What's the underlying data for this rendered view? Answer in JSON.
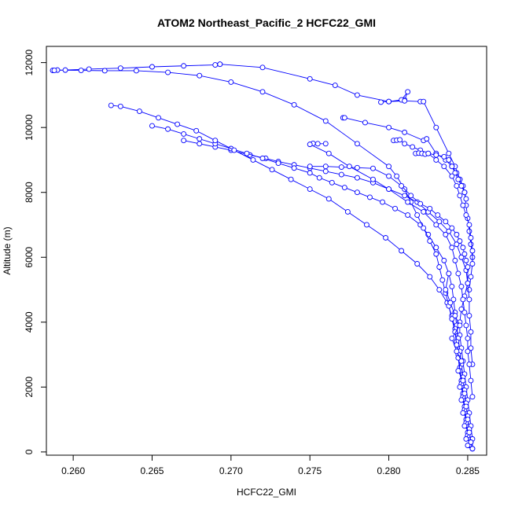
{
  "chart_data": {
    "type": "line",
    "title": "ATOM2 Northeast_Pacific_2 HCFC22_GMI",
    "xlabel": "HCFC22_GMI",
    "ylabel": "Altitude (m)",
    "xlim": [
      0.2583,
      0.2862
    ],
    "ylim": [
      -100,
      12500
    ],
    "x_ticks": [
      0.26,
      0.265,
      0.27,
      0.275,
      0.28,
      0.285
    ],
    "x_tick_labels": [
      "0.260",
      "0.265",
      "0.270",
      "0.275",
      "0.280",
      "0.285"
    ],
    "y_ticks": [
      0,
      2000,
      4000,
      6000,
      8000,
      10000,
      12000
    ],
    "y_tick_labels": [
      "0",
      "2000",
      "4000",
      "6000",
      "8000",
      "10000",
      "12000"
    ],
    "marker": "open-circle",
    "grid": false,
    "legend": "none",
    "color": "#0000ff",
    "series": [
      {
        "x": [
          0.2853,
          0.2853,
          0.2852,
          0.2851,
          0.285,
          0.2849,
          0.2848,
          0.2847,
          0.2846,
          0.2845,
          0.2845,
          0.2846,
          0.2848,
          0.285,
          0.2849,
          0.2846,
          0.2843,
          0.2838,
          0.2832,
          0.2825,
          0.2818,
          0.281,
          0.28,
          0.279,
          0.278,
          0.277,
          0.276,
          0.275,
          0.274,
          0.273,
          0.2722,
          0.2712,
          0.27,
          0.269,
          0.268,
          0.267
        ],
        "y": [
          100,
          400,
          800,
          1200,
          1600,
          2000,
          2400,
          2800,
          3200,
          3600,
          4000,
          4400,
          4800,
          5200,
          5600,
          6000,
          6400,
          6800,
          7100,
          7400,
          7700,
          7900,
          8100,
          8300,
          8450,
          8550,
          8650,
          8750,
          8850,
          8950,
          9050,
          9150,
          9300,
          9400,
          9500,
          9600
        ]
      },
      {
        "x": [
          0.2852,
          0.2851,
          0.285,
          0.2849,
          0.2848,
          0.2847,
          0.2846,
          0.2845,
          0.2844,
          0.2843,
          0.2842,
          0.2841,
          0.284,
          0.2838,
          0.2835,
          0.283,
          0.2825,
          0.282,
          0.2812,
          0.2804,
          0.2796,
          0.2788,
          0.278,
          0.2772,
          0.2764,
          0.2756,
          0.275,
          0.274,
          0.273,
          0.272,
          0.271,
          0.27,
          0.269,
          0.268,
          0.267,
          0.266,
          0.265
        ],
        "y": [
          300,
          700,
          1100,
          1500,
          1900,
          2300,
          2700,
          3100,
          3500,
          3900,
          4300,
          4700,
          5100,
          5500,
          5900,
          6300,
          6700,
          7000,
          7300,
          7500,
          7700,
          7850,
          8000,
          8150,
          8300,
          8450,
          8600,
          8750,
          8900,
          9050,
          9200,
          9350,
          9500,
          9650,
          9800,
          9950,
          10050
        ]
      },
      {
        "x": [
          0.2851,
          0.285,
          0.2849,
          0.2848,
          0.2847,
          0.2846,
          0.2845,
          0.2844,
          0.2843,
          0.2842,
          0.284,
          0.2837,
          0.2832,
          0.2826,
          0.2818,
          0.2808,
          0.2798,
          0.2786,
          0.2774,
          0.2762,
          0.275,
          0.2738,
          0.2726,
          0.2714,
          0.2702,
          0.269,
          0.2678,
          0.2666,
          0.2654,
          0.2642,
          0.263,
          0.2624
        ],
        "y": [
          200,
          600,
          1000,
          1400,
          1800,
          2200,
          2600,
          3000,
          3400,
          3800,
          4200,
          4600,
          5000,
          5400,
          5800,
          6200,
          6600,
          7000,
          7400,
          7800,
          8100,
          8400,
          8700,
          9000,
          9300,
          9600,
          9900,
          10100,
          10300,
          10500,
          10650,
          10680
        ]
      },
      {
        "x": [
          0.285,
          0.2849,
          0.2848,
          0.2847,
          0.2846,
          0.2845,
          0.2844,
          0.2843,
          0.2842,
          0.284,
          0.2838,
          0.2836,
          0.2834,
          0.2832,
          0.283,
          0.2826,
          0.2822,
          0.2818,
          0.2814,
          0.281,
          0.2805,
          0.28,
          0.278,
          0.276,
          0.274,
          0.272,
          0.27,
          0.268,
          0.266,
          0.264,
          0.262,
          0.2605,
          0.259,
          0.2587,
          0.2588,
          0.2595,
          0.261,
          0.263,
          0.265,
          0.267,
          0.269,
          0.2693
        ],
        "y": [
          500,
          900,
          1300,
          1700,
          2100,
          2500,
          2900,
          3300,
          3700,
          4100,
          4500,
          4900,
          5300,
          5700,
          6100,
          6500,
          6900,
          7300,
          7700,
          8100,
          8500,
          8800,
          9500,
          10200,
          10700,
          11100,
          11400,
          11600,
          11700,
          11750,
          11750,
          11760,
          11770,
          11760,
          11760,
          11770,
          11800,
          11830,
          11870,
          11900,
          11930,
          11950
        ]
      },
      {
        "x": [
          0.2693,
          0.272,
          0.275,
          0.2766,
          0.278,
          0.28,
          0.281,
          0.2812,
          0.2808,
          0.28,
          0.2795,
          0.28,
          0.281,
          0.282,
          0.2822,
          0.283,
          0.2838,
          0.2842,
          0.2845,
          0.2848,
          0.2849,
          0.285,
          0.2851,
          0.2852,
          0.2853
        ],
        "y": [
          11950,
          11850,
          11500,
          11300,
          11000,
          10800,
          10850,
          11100,
          10850,
          10800,
          10780,
          10800,
          10820,
          10800,
          10800,
          10000,
          9200,
          8800,
          8400,
          8000,
          7600,
          7200,
          6800,
          6400,
          6000
        ]
      },
      {
        "x": [
          0.2771,
          0.2772,
          0.2785,
          0.28,
          0.281,
          0.2822,
          0.2824,
          0.283,
          0.2836,
          0.284,
          0.2843,
          0.2845,
          0.2847,
          0.2848,
          0.2849
        ],
        "y": [
          10300,
          10300,
          10150,
          10000,
          9850,
          9600,
          9650,
          9200,
          9000,
          8800,
          8600,
          8400,
          8200,
          8000,
          7800
        ]
      },
      {
        "x": [
          0.2803,
          0.2805,
          0.2807,
          0.281,
          0.2815,
          0.282,
          0.2825,
          0.283,
          0.2835,
          0.2838,
          0.284,
          0.2842,
          0.2844,
          0.2846,
          0.2848
        ],
        "y": [
          9600,
          9610,
          9620,
          9500,
          9400,
          9300,
          9200,
          9150,
          9100,
          9000,
          8800,
          8600,
          8400,
          8200,
          8000
        ]
      },
      {
        "x": [
          0.2817,
          0.2819,
          0.2821,
          0.2823,
          0.2825,
          0.283,
          0.2835,
          0.284,
          0.2843,
          0.2845,
          0.2847,
          0.2849,
          0.2851,
          0.2852,
          0.2853,
          0.2853,
          0.2852,
          0.2851
        ],
        "y": [
          9200,
          9210,
          9200,
          9180,
          9200,
          9000,
          8800,
          8500,
          8200,
          7900,
          7600,
          7300,
          7000,
          6600,
          6200,
          5800,
          5400,
          5000
        ]
      },
      {
        "x": [
          0.275,
          0.276,
          0.277,
          0.278,
          0.279,
          0.28,
          0.2808,
          0.2814,
          0.282,
          0.2826,
          0.2831,
          0.2836,
          0.284,
          0.2843,
          0.2845,
          0.2847,
          0.2848,
          0.2849,
          0.285,
          0.285,
          0.2851,
          0.2851,
          0.2852,
          0.2852,
          0.2853
        ],
        "y": [
          8800,
          8800,
          8780,
          8760,
          8740,
          8500,
          8200,
          7900,
          7650,
          7500,
          7300,
          7100,
          6900,
          6700,
          6500,
          6300,
          6100,
          5900,
          5700,
          5200,
          4700,
          4200,
          3700,
          3200,
          2700
        ]
      },
      {
        "x": [
          0.276,
          0.2755,
          0.2752,
          0.275,
          0.2762,
          0.2775,
          0.279,
          0.28,
          0.2812,
          0.2822,
          0.283,
          0.2836,
          0.284,
          0.2842,
          0.2844,
          0.2846,
          0.2847,
          0.2848,
          0.2849,
          0.285,
          0.285,
          0.2851,
          0.2852,
          0.2853
        ],
        "y": [
          9500,
          9500,
          9510,
          9480,
          9200,
          8800,
          8400,
          8100,
          7700,
          7400,
          7000,
          6700,
          6300,
          5900,
          5500,
          5100,
          4700,
          4300,
          3900,
          3500,
          3100,
          2700,
          2200,
          1700
        ]
      },
      {
        "x": [
          0.2838,
          0.2836,
          0.2839,
          0.2842,
          0.2845,
          0.284,
          0.2843,
          0.2846,
          0.2844,
          0.2847,
          0.2845,
          0.2848,
          0.2846,
          0.2849,
          0.2847,
          0.285,
          0.2848,
          0.2851,
          0.2849,
          0.2852,
          0.285,
          0.2853
        ],
        "y": [
          5500,
          5000,
          4600,
          4200,
          3900,
          3500,
          3100,
          2800,
          2500,
          2200,
          2000,
          1800,
          1600,
          1400,
          1200,
          1000,
          800,
          600,
          400,
          300,
          200,
          100
        ]
      }
    ]
  }
}
